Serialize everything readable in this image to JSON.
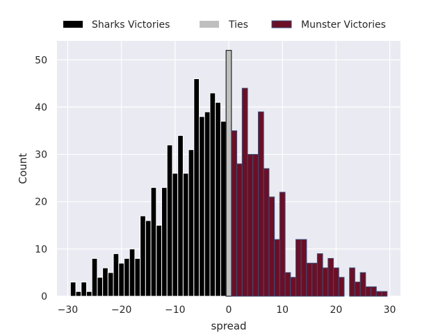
{
  "chart_data": {
    "type": "bar",
    "xlabel": "spread",
    "ylabel": "Count",
    "xlim": [
      -32,
      32
    ],
    "ylim": [
      0,
      54
    ],
    "xticks": [
      -30,
      -20,
      -10,
      0,
      10,
      20,
      30
    ],
    "xtick_labels": [
      "−30",
      "−20",
      "−10",
      "0",
      "10",
      "20",
      "30"
    ],
    "yticks": [
      0,
      10,
      20,
      30,
      40,
      50
    ],
    "ytick_labels": [
      "0",
      "10",
      "20",
      "30",
      "40",
      "50"
    ],
    "grid": true,
    "legend_position": "top",
    "series": [
      {
        "name": "Sharks Victories",
        "color": "#000000",
        "edge_color": "#ffffff",
        "bins": [
          {
            "x": -29,
            "count": 3
          },
          {
            "x": -28,
            "count": 1
          },
          {
            "x": -27,
            "count": 3
          },
          {
            "x": -26,
            "count": 1
          },
          {
            "x": -25,
            "count": 8
          },
          {
            "x": -24,
            "count": 4
          },
          {
            "x": -23,
            "count": 6
          },
          {
            "x": -22,
            "count": 5
          },
          {
            "x": -21,
            "count": 9
          },
          {
            "x": -20,
            "count": 7
          },
          {
            "x": -19,
            "count": 8
          },
          {
            "x": -18,
            "count": 10
          },
          {
            "x": -17,
            "count": 8
          },
          {
            "x": -16,
            "count": 17
          },
          {
            "x": -15,
            "count": 16
          },
          {
            "x": -14,
            "count": 23
          },
          {
            "x": -13,
            "count": 15
          },
          {
            "x": -12,
            "count": 23
          },
          {
            "x": -11,
            "count": 32
          },
          {
            "x": -10,
            "count": 26
          },
          {
            "x": -9,
            "count": 34
          },
          {
            "x": -8,
            "count": 26
          },
          {
            "x": -7,
            "count": 31
          },
          {
            "x": -6,
            "count": 46
          },
          {
            "x": -5,
            "count": 38
          },
          {
            "x": -4,
            "count": 39
          },
          {
            "x": -3,
            "count": 43
          },
          {
            "x": -2,
            "count": 41
          },
          {
            "x": -1,
            "count": 37
          }
        ]
      },
      {
        "name": "Ties",
        "color": "#bfbfbf",
        "edge_color": "#000000",
        "bins": [
          {
            "x": 0,
            "count": 52
          }
        ]
      },
      {
        "name": "Munster Victories",
        "color": "#6b0f26",
        "edge_color": "#3a4f7a",
        "bins": [
          {
            "x": 1,
            "count": 35
          },
          {
            "x": 2,
            "count": 28
          },
          {
            "x": 3,
            "count": 44
          },
          {
            "x": 4,
            "count": 30
          },
          {
            "x": 5,
            "count": 30
          },
          {
            "x": 6,
            "count": 39
          },
          {
            "x": 7,
            "count": 27
          },
          {
            "x": 8,
            "count": 21
          },
          {
            "x": 9,
            "count": 12
          },
          {
            "x": 10,
            "count": 22
          },
          {
            "x": 11,
            "count": 5
          },
          {
            "x": 12,
            "count": 4
          },
          {
            "x": 13,
            "count": 12
          },
          {
            "x": 14,
            "count": 12
          },
          {
            "x": 15,
            "count": 7
          },
          {
            "x": 16,
            "count": 7
          },
          {
            "x": 17,
            "count": 9
          },
          {
            "x": 18,
            "count": 6
          },
          {
            "x": 19,
            "count": 8
          },
          {
            "x": 20,
            "count": 6
          },
          {
            "x": 21,
            "count": 4
          },
          {
            "x": 23,
            "count": 6
          },
          {
            "x": 24,
            "count": 3
          },
          {
            "x": 25,
            "count": 5
          },
          {
            "x": 26,
            "count": 2
          },
          {
            "x": 27,
            "count": 2
          },
          {
            "x": 28,
            "count": 1
          },
          {
            "x": 29,
            "count": 1
          }
        ]
      }
    ]
  }
}
